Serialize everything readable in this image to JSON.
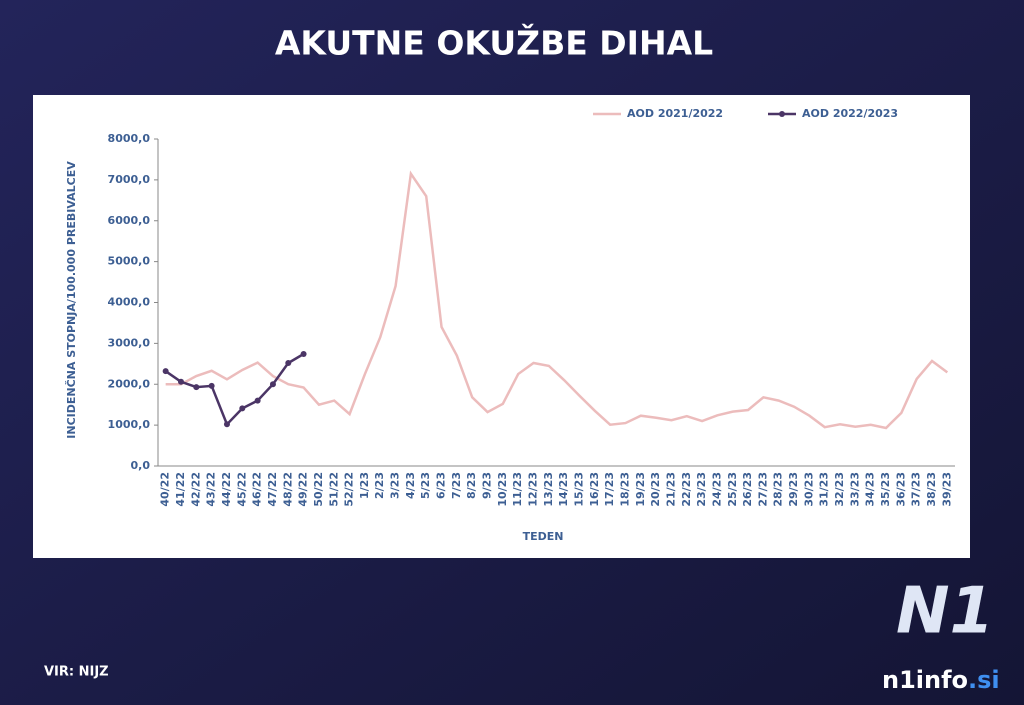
{
  "header": {
    "title": "AKUTNE OKUŽBE DIHAL"
  },
  "chart_data": {
    "type": "line",
    "x_label": "TEDEN",
    "y_label": "INCIDENČNA STOPNJA/100.000 PREBIVALCEV",
    "categories": [
      "40/22",
      "41/22",
      "42/22",
      "43/22",
      "44/22",
      "45/22",
      "46/22",
      "47/22",
      "48/22",
      "49/22",
      "50/22",
      "51/22",
      "52/22",
      "1/23",
      "2/23",
      "3/23",
      "4/23",
      "5/23",
      "6/23",
      "7/23",
      "8/23",
      "9/23",
      "10/23",
      "11/23",
      "12/23",
      "13/23",
      "14/23",
      "15/23",
      "16/23",
      "17/23",
      "18/23",
      "19/23",
      "20/23",
      "21/23",
      "22/23",
      "23/23",
      "24/23",
      "25/23",
      "26/23",
      "27/23",
      "28/23",
      "29/23",
      "30/23",
      "31/23",
      "32/23",
      "33/23",
      "34/23",
      "35/23",
      "36/23",
      "37/23",
      "38/23",
      "39/23"
    ],
    "series": [
      {
        "name": "AOD 2021/2022",
        "color": "#ecbcbc",
        "markers": false,
        "values": [
          2000,
          2000,
          2200,
          2330,
          2120,
          2350,
          2530,
          2200,
          2000,
          1920,
          1500,
          1600,
          1270,
          2250,
          3150,
          4400,
          7150,
          6600,
          3400,
          2700,
          1680,
          1320,
          1520,
          2250,
          2520,
          2450,
          2100,
          1720,
          1350,
          1010,
          1050,
          1230,
          1180,
          1120,
          1220,
          1100,
          1240,
          1330,
          1370,
          1680,
          1600,
          1450,
          1230,
          950,
          1020,
          960,
          1010,
          930,
          1300,
          2130,
          2570,
          2290
        ]
      },
      {
        "name": "AOD 2022/2023",
        "color": "#4b3566",
        "markers": true,
        "values": [
          2320,
          2060,
          1930,
          1960,
          1020,
          1410,
          1600,
          2000,
          2520,
          2740,
          null,
          null,
          null,
          null,
          null,
          null,
          null,
          null,
          null,
          null,
          null,
          null,
          null,
          null,
          null,
          null,
          null,
          null,
          null,
          null,
          null,
          null,
          null,
          null,
          null,
          null,
          null,
          null,
          null,
          null,
          null,
          null,
          null,
          null,
          null,
          null,
          null,
          null,
          null,
          null,
          null,
          null
        ]
      }
    ],
    "ylim": [
      0,
      8000
    ],
    "yticks": [
      {
        "value": 0,
        "label": "0,0"
      },
      {
        "value": 1000,
        "label": "1000,0"
      },
      {
        "value": 2000,
        "label": "2000,0"
      },
      {
        "value": 3000,
        "label": "3000,0"
      },
      {
        "value": 4000,
        "label": "4000,0"
      },
      {
        "value": 5000,
        "label": "5000,0"
      },
      {
        "value": 6000,
        "label": "6000,0"
      },
      {
        "value": 7000,
        "label": "7000,0"
      },
      {
        "value": 8000,
        "label": "8000,0"
      }
    ],
    "legend": "top-right"
  },
  "footer": {
    "source": "VIR: NIJZ",
    "logo": "N1",
    "site": "n1info",
    "domain": ".si"
  }
}
